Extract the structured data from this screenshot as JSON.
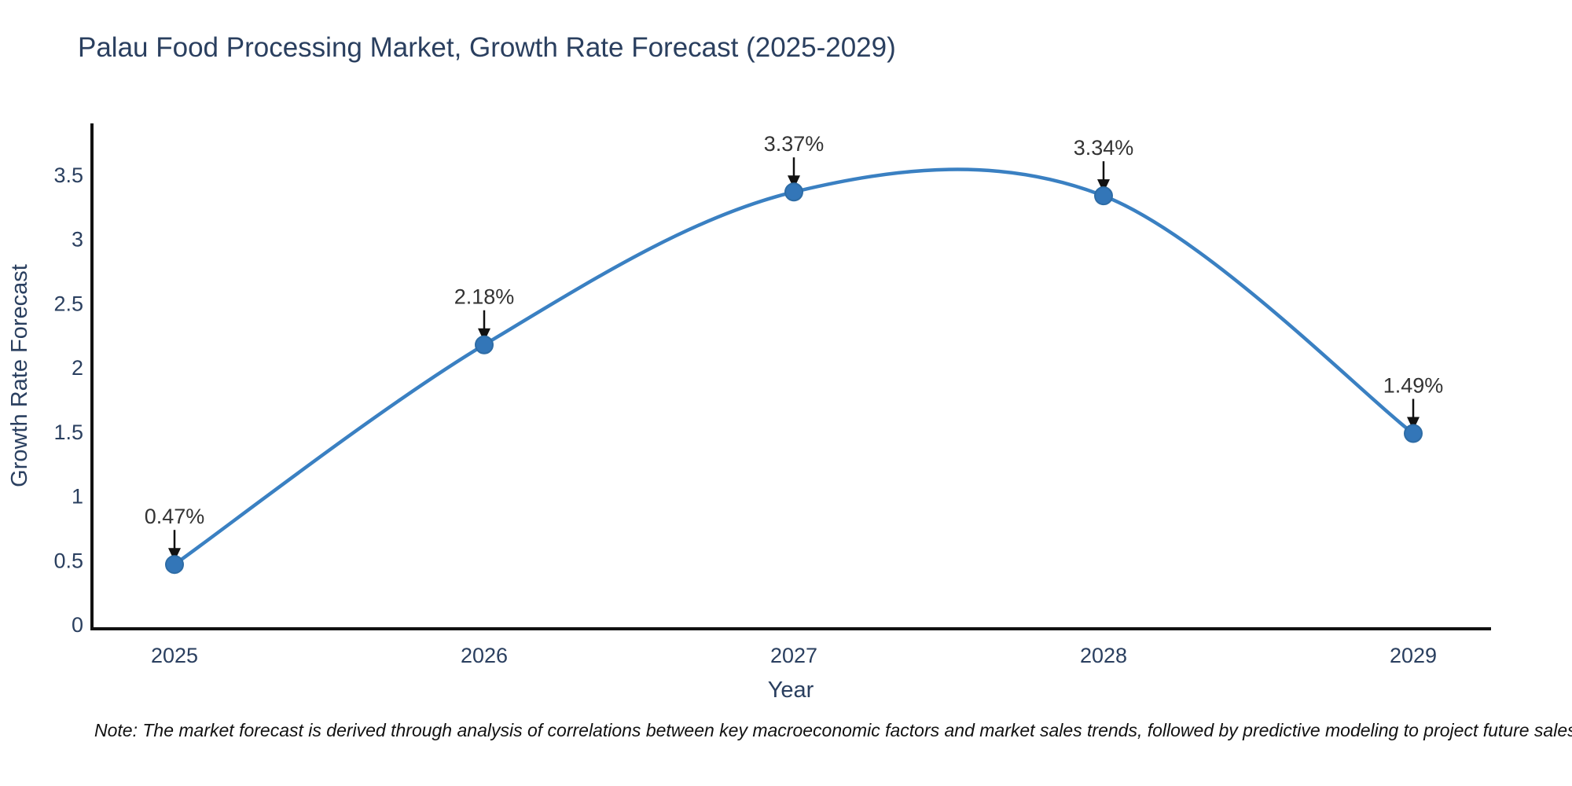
{
  "title": "Palau Food Processing Market, Growth Rate Forecast (2025-2029)",
  "note": "Note: The market forecast is derived through analysis of correlations between key macroeconomic factors and market sales trends, followed by predictive modeling to project future sales.",
  "chart_data": {
    "type": "line",
    "title": "Palau Food Processing Market, Growth Rate Forecast (2025-2029)",
    "categories": [
      "2025",
      "2026",
      "2027",
      "2028",
      "2029"
    ],
    "values": [
      0.47,
      2.18,
      3.37,
      3.34,
      1.49
    ],
    "point_labels": [
      "0.47%",
      "2.18%",
      "3.37%",
      "3.34%",
      "1.49%"
    ],
    "xlabel": "Year",
    "ylabel": "Growth Rate Forecast",
    "ylim": [
      0,
      3.9
    ],
    "yticks": [
      0,
      0.5,
      1,
      1.5,
      2,
      2.5,
      3,
      3.5
    ],
    "ytick_labels": [
      "0",
      "0.5",
      "1",
      "1.5",
      "2",
      "2.5",
      "3",
      "3.5"
    ],
    "grid": false,
    "legend_position": "none",
    "line_smoothing": "spline",
    "marker": "circle"
  },
  "colors": {
    "line": "#3a80c2",
    "marker": "#3376b8",
    "marker_edge": "#2e6ca5",
    "axis": "#111111",
    "text": "#2a3f5f",
    "annotation": "#333333",
    "annotation_arrow": "#111111",
    "note_text": "#111111",
    "background": "#ffffff"
  }
}
